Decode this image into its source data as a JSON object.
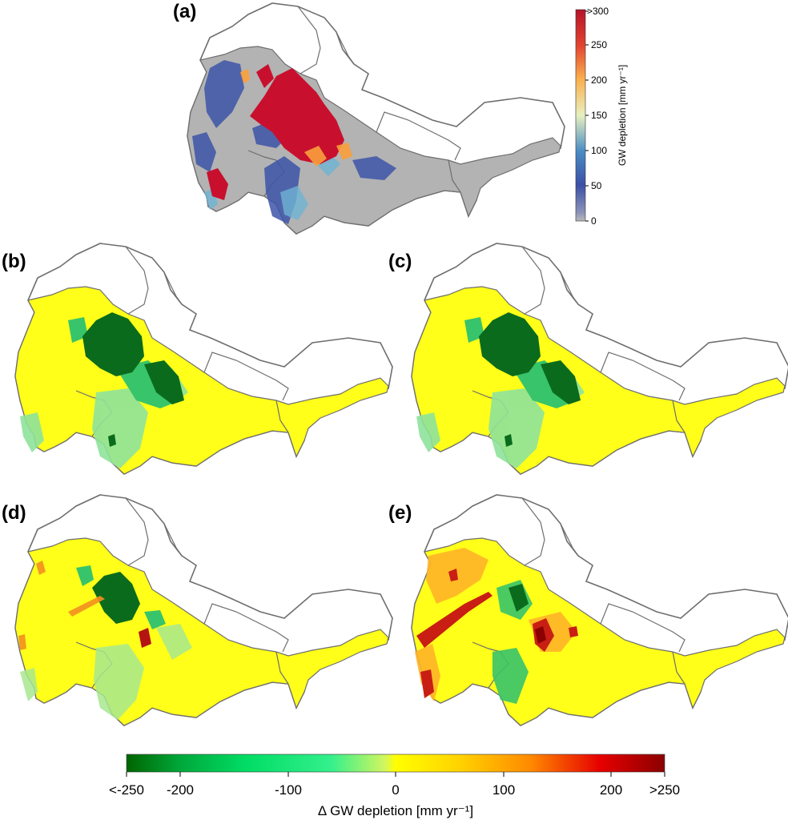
{
  "panels": [
    {
      "id": "a",
      "label": "(a)"
    },
    {
      "id": "b",
      "label": "(b)"
    },
    {
      "id": "c",
      "label": "(c)"
    },
    {
      "id": "d",
      "label": "(d)"
    },
    {
      "id": "e",
      "label": "(e)"
    }
  ],
  "top_colorbar": {
    "title": "GW depletion [mm yr⁻¹]",
    "ticks": [
      "0",
      "50",
      "100",
      "150",
      "200",
      "250",
      ">300"
    ],
    "colors": [
      "#b9b9b9",
      "#3b4fa6",
      "#4a8cc4",
      "#e7f0c0",
      "#fbb04d",
      "#e24430",
      "#b5132a"
    ]
  },
  "bottom_colorbar": {
    "title": "Δ GW depletion [mm yr⁻¹]",
    "ticks": [
      "<-250",
      "-200",
      "-100",
      "0",
      "100",
      "200",
      ">250"
    ],
    "colors": [
      "#006400",
      "#00c850",
      "#34f08c",
      "#b4f07a",
      "#ffff00",
      "#ffbe00",
      "#ff6a00",
      "#e60000",
      "#8b0000"
    ]
  },
  "map_colors": {
    "outline": "#6e6e6e",
    "basin_fill_a": "#b3b3b3",
    "basin_fill_delta": "#ffff19",
    "hotspot_a": "#c8102e",
    "low_a": "#3d55a8",
    "dark_green": "#0b6b1c",
    "mid_green": "#38c46a",
    "light_green": "#8fe39b",
    "red": "#c81e14",
    "orange": "#ff9a1a"
  }
}
